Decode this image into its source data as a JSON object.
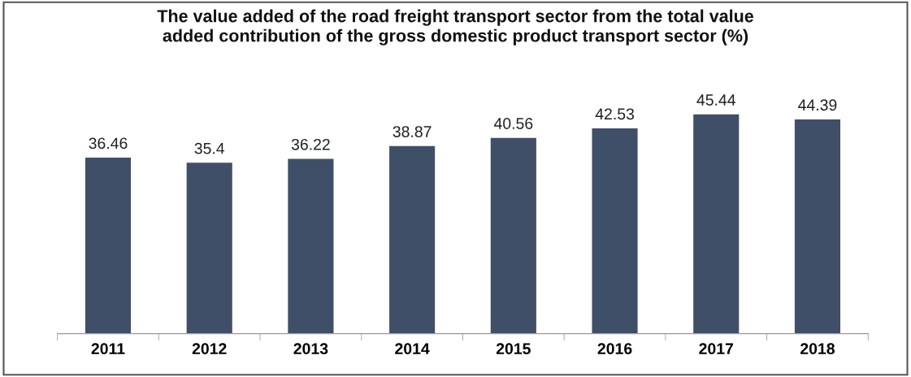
{
  "chart_data": {
    "type": "bar",
    "title": "The value added of the road freight transport sector from the total value\nadded contribution of the gross domestic product transport sector (%)",
    "categories": [
      "2011",
      "2012",
      "2013",
      "2014",
      "2015",
      "2016",
      "2017",
      "2018"
    ],
    "values": [
      36.46,
      35.4,
      36.22,
      38.87,
      40.56,
      42.53,
      45.44,
      44.39
    ],
    "color": "#404f68",
    "data_labels": true,
    "grid": false,
    "legend": false
  }
}
